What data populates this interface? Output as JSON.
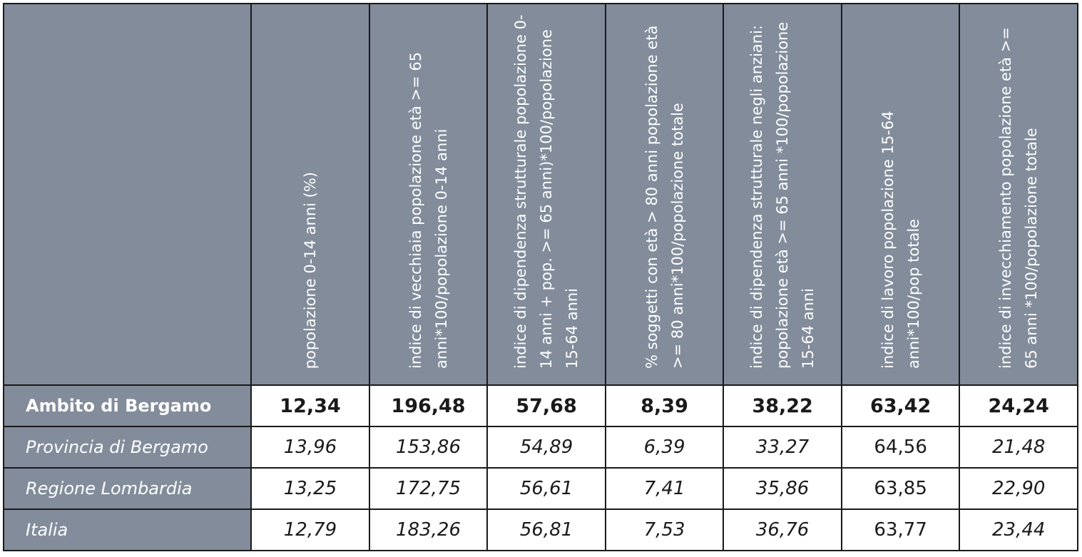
{
  "headers": [
    "popolazione 0-14 anni (%)",
    "indice di vecchiaia popolazione età >= 65 anni*100/popolazione 0-14 anni",
    "indice di dipendenza strutturale popolazione 0-14 anni + pop. >= 65 anni)*100/popolazione 15-64 anni",
    "% soggetti con età > 80 anni popolazione età >= 80 anni*100/popolazione totale",
    "indice di dipendenza strutturale negli anziani: popolazione età >= 65 anni *100/popolazione 15-64 anni",
    "indice di lavoro popolazione 15-64 anni*100/pop totale",
    "indice di invecchiamento popolazione età >= 65 anni *100/popolazione totale"
  ],
  "rows": [
    {
      "label": "Ambito di Bergamo",
      "values": [
        "12,34",
        "196,48",
        "57,68",
        "8,39",
        "38,22",
        "63,42",
        "24,24"
      ]
    },
    {
      "label": "Provincia di Bergamo",
      "values": [
        "13,96",
        "153,86",
        "54,89",
        "6,39",
        "33,27",
        "64,56",
        "21,48"
      ]
    },
    {
      "label": "Regione Lombardia",
      "values": [
        "13,25",
        "172,75",
        "56,61",
        "7,41",
        "35,86",
        "63,85",
        "22,90"
      ]
    },
    {
      "label": "Italia",
      "values": [
        "12,79",
        "183,26",
        "56,81",
        "7,53",
        "36,76",
        "63,77",
        "23,44"
      ]
    }
  ],
  "colors": {
    "header_bg": "#828c9b",
    "border": "#1a1a1a",
    "header_text": "#ffffff"
  }
}
